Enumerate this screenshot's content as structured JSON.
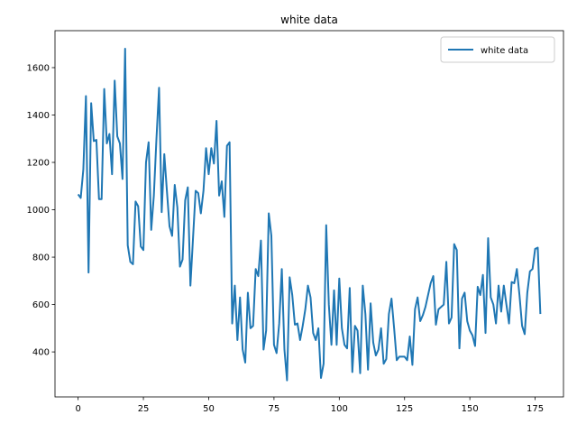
{
  "chart_data": {
    "type": "line",
    "title": "white data",
    "x": [
      0,
      1,
      2,
      3,
      4,
      5,
      6,
      7,
      8,
      9,
      10,
      11,
      12,
      13,
      14,
      15,
      16,
      17,
      18,
      19,
      20,
      21,
      22,
      23,
      24,
      25,
      26,
      27,
      28,
      29,
      30,
      31,
      32,
      33,
      34,
      35,
      36,
      37,
      38,
      39,
      40,
      41,
      42,
      43,
      44,
      45,
      46,
      47,
      48,
      49,
      50,
      51,
      52,
      53,
      54,
      55,
      56,
      57,
      58,
      59,
      60,
      61,
      62,
      63,
      64,
      65,
      66,
      67,
      68,
      69,
      70,
      71,
      72,
      73,
      74,
      75,
      76,
      77,
      78,
      79,
      80,
      81,
      82,
      83,
      84,
      85,
      86,
      87,
      88,
      89,
      90,
      91,
      92,
      93,
      94,
      95,
      96,
      97,
      98,
      99,
      100,
      101,
      102,
      103,
      104,
      105,
      106,
      107,
      108,
      109,
      110,
      111,
      112,
      113,
      114,
      115,
      116,
      117,
      118,
      119,
      120,
      121,
      122,
      123,
      124,
      125,
      126,
      127,
      128,
      129,
      130,
      131,
      132,
      133,
      134,
      135,
      136,
      137,
      138,
      139,
      140,
      141,
      142,
      143,
      144,
      145,
      146,
      147,
      148,
      149,
      150,
      151,
      152,
      153,
      154,
      155,
      156,
      157,
      158,
      159,
      160,
      161,
      162,
      163,
      164,
      165,
      166,
      167,
      168,
      169,
      170,
      171,
      172,
      173,
      174,
      175,
      176,
      177
    ],
    "series": [
      {
        "name": "white data",
        "color": "#1f77b4",
        "values": [
          1065,
          1050,
          1170,
          1480,
          735,
          1450,
          1290,
          1295,
          1045,
          1045,
          1510,
          1280,
          1320,
          1150,
          1545,
          1310,
          1280,
          1130,
          1680,
          850,
          780,
          770,
          1035,
          1015,
          845,
          830,
          1200,
          1285,
          915,
          1060,
          1300,
          1515,
          990,
          1235,
          1080,
          930,
          890,
          1105,
          1010,
          760,
          790,
          1040,
          1095,
          680,
          880,
          1080,
          1070,
          985,
          1080,
          1260,
          1150,
          1260,
          1195,
          1375,
          1060,
          1120,
          970,
          1270,
          1285,
          520,
          680,
          450,
          630,
          410,
          355,
          650,
          500,
          510,
          750,
          720,
          870,
          410,
          490,
          985,
          890,
          430,
          395,
          520,
          750,
          410,
          280,
          715,
          640,
          515,
          520,
          450,
          510,
          580,
          680,
          630,
          480,
          450,
          500,
          290,
          350,
          935,
          600,
          430,
          660,
          430,
          710,
          500,
          430,
          415,
          670,
          315,
          510,
          490,
          310,
          680,
          560,
          325,
          605,
          440,
          385,
          410,
          500,
          350,
          370,
          560,
          625,
          500,
          365,
          380,
          380,
          380,
          365,
          465,
          345,
          580,
          630,
          530,
          555,
          590,
          640,
          690,
          720,
          515,
          580,
          590,
          600,
          780,
          520,
          545,
          855,
          830,
          415,
          625,
          650,
          530,
          490,
          470,
          425,
          675,
          640,
          725,
          480,
          880,
          630,
          600,
          520,
          680,
          570,
          680,
          600,
          520,
          695,
          690,
          750,
          640,
          510,
          475,
          650,
          740,
          750,
          835,
          840,
          560
        ]
      }
    ],
    "xlim": [
      -8.85,
      185.85
    ],
    "ylim": [
      210,
      1756
    ],
    "xticks": [
      0,
      25,
      50,
      75,
      100,
      125,
      150,
      175
    ],
    "yticks": [
      400,
      600,
      800,
      1000,
      1200,
      1400,
      1600
    ],
    "legend": "upper right"
  }
}
